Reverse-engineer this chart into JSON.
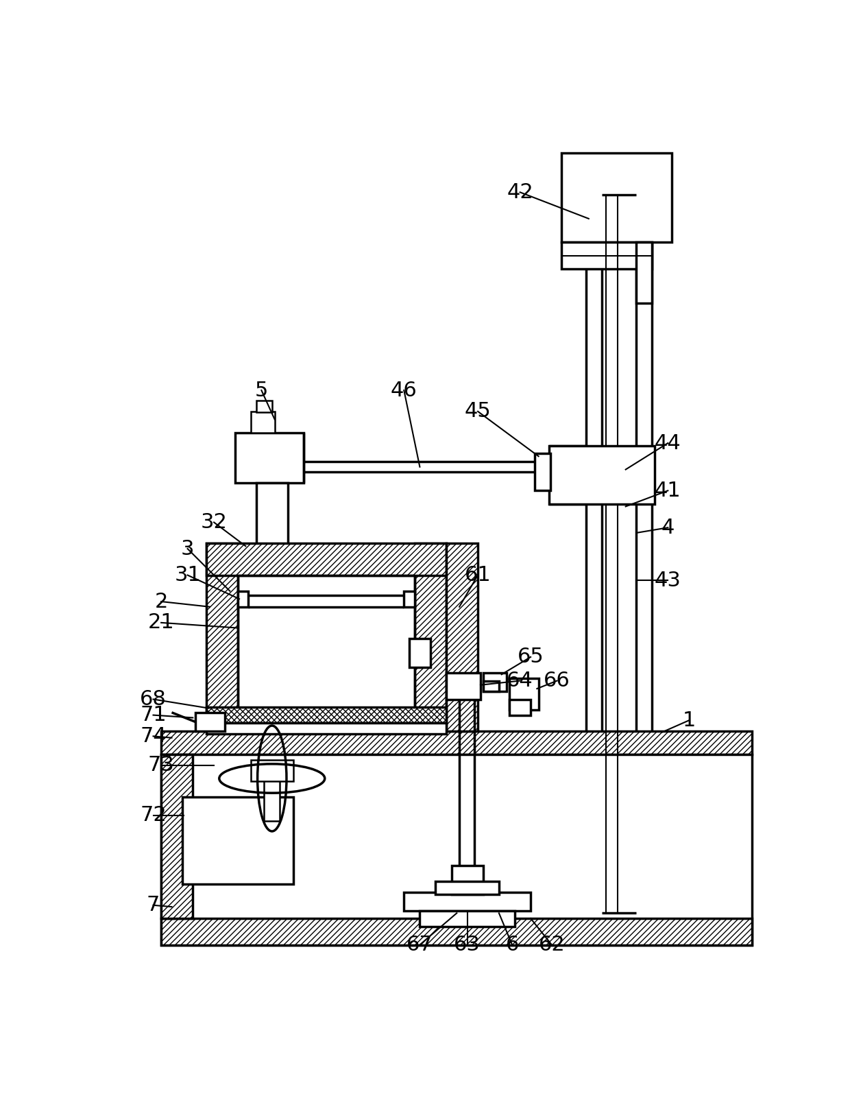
{
  "fig_width": 12.4,
  "fig_height": 15.98,
  "dpi": 100,
  "bg_color": "#ffffff",
  "lw": 1.8
}
